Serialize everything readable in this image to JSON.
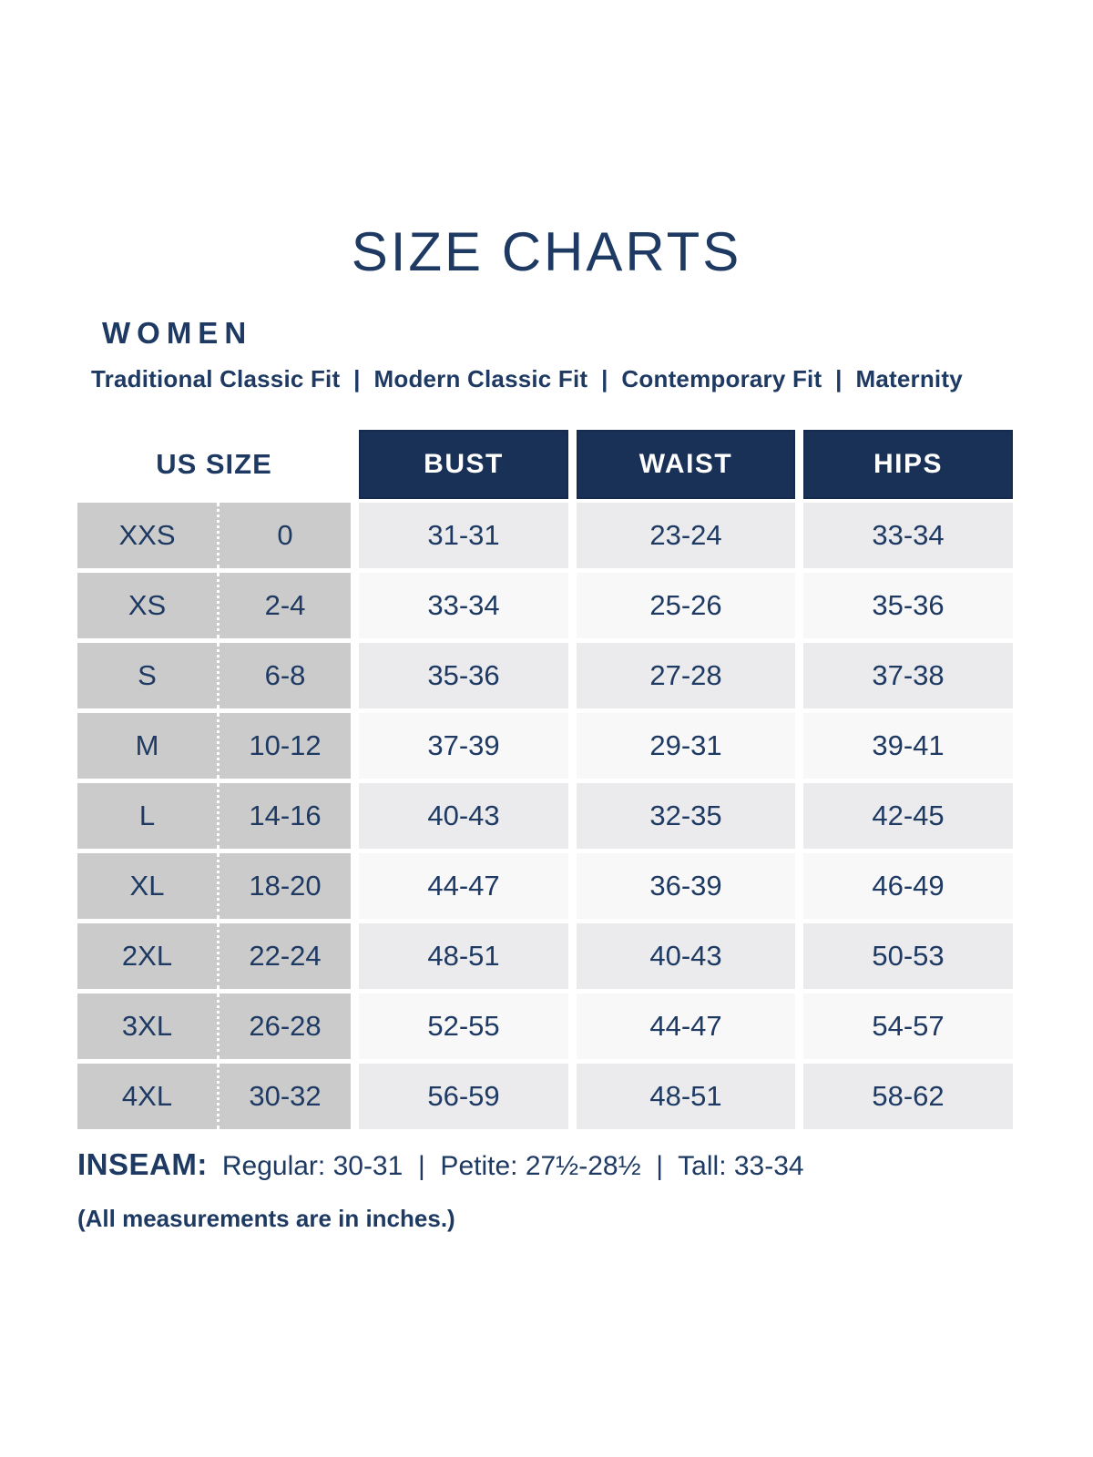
{
  "colors": {
    "page_bg": "#ffffff",
    "navy_text": "#1e3a63",
    "navy_header_bg": "#1a3157",
    "header_text": "#ffffff",
    "size_col_bg": "#cbcbcb",
    "row_alt_bg": "#ebebed",
    "row_base_bg": "#f8f8f9",
    "divider_dots": "#ffffff"
  },
  "chart_data": {
    "type": "table",
    "title": "SIZE CHARTS",
    "section_heading": "WOMEN",
    "fits_line": "Traditional Classic Fit  |  Modern Classic Fit  |  Contemporary Fit  |  Maternity",
    "columns": [
      "US SIZE",
      "BUST",
      "WAIST",
      "HIPS"
    ],
    "rows": [
      {
        "size": "XXS",
        "us_size": "0",
        "bust": "31-31",
        "waist": "23-24",
        "hips": "33-34"
      },
      {
        "size": "XS",
        "us_size": "2-4",
        "bust": "33-34",
        "waist": "25-26",
        "hips": "35-36"
      },
      {
        "size": "S",
        "us_size": "6-8",
        "bust": "35-36",
        "waist": "27-28",
        "hips": "37-38"
      },
      {
        "size": "M",
        "us_size": "10-12",
        "bust": "37-39",
        "waist": "29-31",
        "hips": "39-41"
      },
      {
        "size": "L",
        "us_size": "14-16",
        "bust": "40-43",
        "waist": "32-35",
        "hips": "42-45"
      },
      {
        "size": "XL",
        "us_size": "18-20",
        "bust": "44-47",
        "waist": "36-39",
        "hips": "46-49"
      },
      {
        "size": "2XL",
        "us_size": "22-24",
        "bust": "48-51",
        "waist": "40-43",
        "hips": "50-53"
      },
      {
        "size": "3XL",
        "us_size": "26-28",
        "bust": "52-55",
        "waist": "44-47",
        "hips": "54-57"
      },
      {
        "size": "4XL",
        "us_size": "30-32",
        "bust": "56-59",
        "waist": "48-51",
        "hips": "58-62"
      }
    ],
    "inseam_label": "INSEAM:",
    "inseam_text": "Regular: 30-31  |  Petite: 27½-28½  |  Tall: 33-34",
    "note": "(All measurements are in inches.)"
  }
}
